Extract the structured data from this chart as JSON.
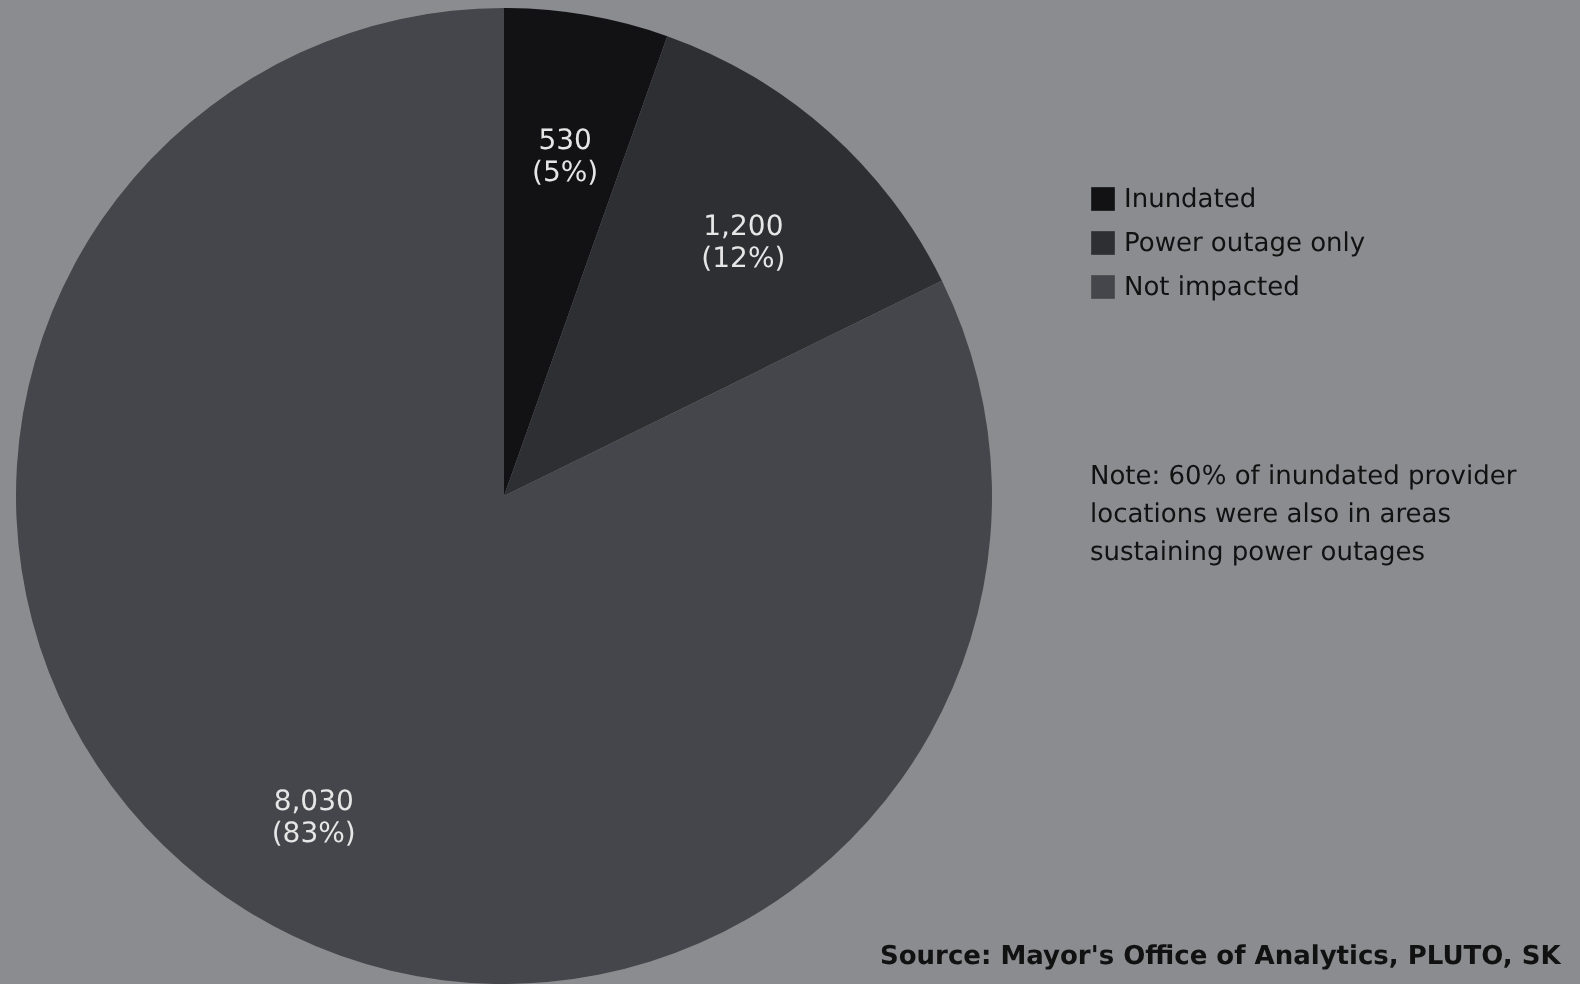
{
  "chart_data": {
    "type": "pie",
    "categories": [
      "Inundated",
      "Power outage only",
      "Not impacted"
    ],
    "values": [
      530,
      1200,
      8030
    ],
    "colors": [
      "#121214",
      "#2e2f33",
      "#45464b"
    ],
    "value_labels": [
      "530\n(5%)",
      "1,200\n(12%)",
      "8,030\n(83%)"
    ],
    "legend": "right",
    "annotations": [
      "Note: 60% of inundated provider locations were also in areas sustaining power outages",
      "Source: Mayor's Office of Analytics, PLUTO, SK"
    ]
  }
}
